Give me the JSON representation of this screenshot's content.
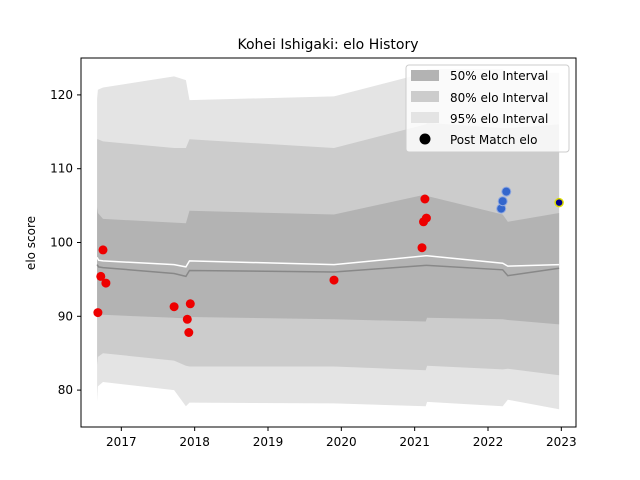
{
  "chart_data": {
    "type": "line",
    "title": "Kohei Ishigaki: elo History",
    "xlabel": "",
    "ylabel": "elo score",
    "xlim": [
      2016.45,
      2023.2
    ],
    "ylim": [
      75,
      125
    ],
    "x_ticks": [
      2017,
      2018,
      2019,
      2020,
      2021,
      2022,
      2023
    ],
    "y_ticks": [
      80,
      90,
      100,
      110,
      120
    ],
    "legend_position": "top-right",
    "legend": {
      "band50": "50% elo Interval",
      "band80": "80% elo Interval",
      "band95": "95% elo Interval",
      "points": "Post Match elo"
    },
    "colors": {
      "band50": "#b3b3b3",
      "band80": "#cccccc",
      "band95": "#e4e4e4",
      "mean_line": "#ffffff",
      "median_line": "#888888",
      "match_points": "#ee0000",
      "recent_points": "#3366cc",
      "latest_point": "#00008b",
      "latest_point_edge": "#dddd00"
    },
    "bands": {
      "x": [
        2016.67,
        2016.68,
        2016.75,
        2017.72,
        2017.88,
        2017.93,
        2019.9,
        2021.15,
        2021.17,
        2022.2,
        2022.27,
        2022.97
      ],
      "p95_upper": [
        119.5,
        120.7,
        121.0,
        122.5,
        122.0,
        119.3,
        119.8,
        123.0,
        123.5,
        123.5,
        123.0,
        123.0
      ],
      "p80_upper": [
        114.0,
        114.0,
        113.7,
        112.8,
        112.8,
        114.0,
        112.8,
        116.0,
        116.2,
        115.5,
        115.5,
        116.0
      ],
      "p50_upper": [
        104.8,
        104.0,
        103.2,
        102.7,
        102.6,
        104.3,
        103.8,
        106.5,
        106.3,
        103.8,
        102.8,
        104.0
      ],
      "p50_lower": [
        90.0,
        90.3,
        90.2,
        89.8,
        89.7,
        89.9,
        89.6,
        89.3,
        89.8,
        89.6,
        89.5,
        88.9
      ],
      "p80_lower": [
        83.4,
        84.5,
        85.0,
        84.0,
        83.3,
        83.2,
        83.2,
        82.7,
        83.3,
        82.8,
        82.9,
        82.0
      ],
      "p95_lower": [
        78.4,
        80.5,
        81.1,
        80.0,
        77.8,
        78.3,
        78.2,
        77.8,
        78.4,
        77.8,
        78.7,
        77.4
      ]
    },
    "mean_line": {
      "x": [
        2016.67,
        2016.69,
        2016.75,
        2017.72,
        2017.88,
        2017.93,
        2019.9,
        2021.15,
        2021.17,
        2022.2,
        2022.27,
        2022.97
      ],
      "values": [
        98.0,
        97.6,
        97.5,
        97.0,
        96.7,
        97.5,
        97.0,
        98.2,
        98.2,
        97.2,
        96.8,
        97.0
      ]
    },
    "median_line": {
      "x": [
        2016.67,
        2016.69,
        2016.75,
        2017.72,
        2017.88,
        2017.93,
        2019.9,
        2021.15,
        2021.17,
        2022.2,
        2022.27,
        2022.97
      ],
      "values": [
        97.0,
        96.7,
        96.6,
        95.8,
        95.4,
        96.2,
        96.0,
        96.9,
        96.9,
        96.3,
        95.5,
        96.5
      ]
    },
    "series": [
      {
        "points": [
          {
            "x": 2016.68,
            "y": 90.5
          },
          {
            "x": 2016.72,
            "y": 95.4
          },
          {
            "x": 2016.75,
            "y": 99.0
          },
          {
            "x": 2016.79,
            "y": 94.5
          },
          {
            "x": 2017.72,
            "y": 91.3
          },
          {
            "x": 2017.9,
            "y": 89.6
          },
          {
            "x": 2017.92,
            "y": 87.8
          },
          {
            "x": 2017.94,
            "y": 91.7
          },
          {
            "x": 2019.9,
            "y": 94.9
          },
          {
            "x": 2021.1,
            "y": 99.3
          },
          {
            "x": 2021.12,
            "y": 102.8
          },
          {
            "x": 2021.14,
            "y": 105.9
          },
          {
            "x": 2021.16,
            "y": 103.3
          }
        ]
      },
      {
        "points": [
          {
            "x": 2022.18,
            "y": 104.6
          },
          {
            "x": 2022.2,
            "y": 105.6
          },
          {
            "x": 2022.25,
            "y": 106.9
          }
        ]
      },
      {
        "points": [
          {
            "x": 2022.97,
            "y": 105.4
          }
        ]
      }
    ]
  }
}
